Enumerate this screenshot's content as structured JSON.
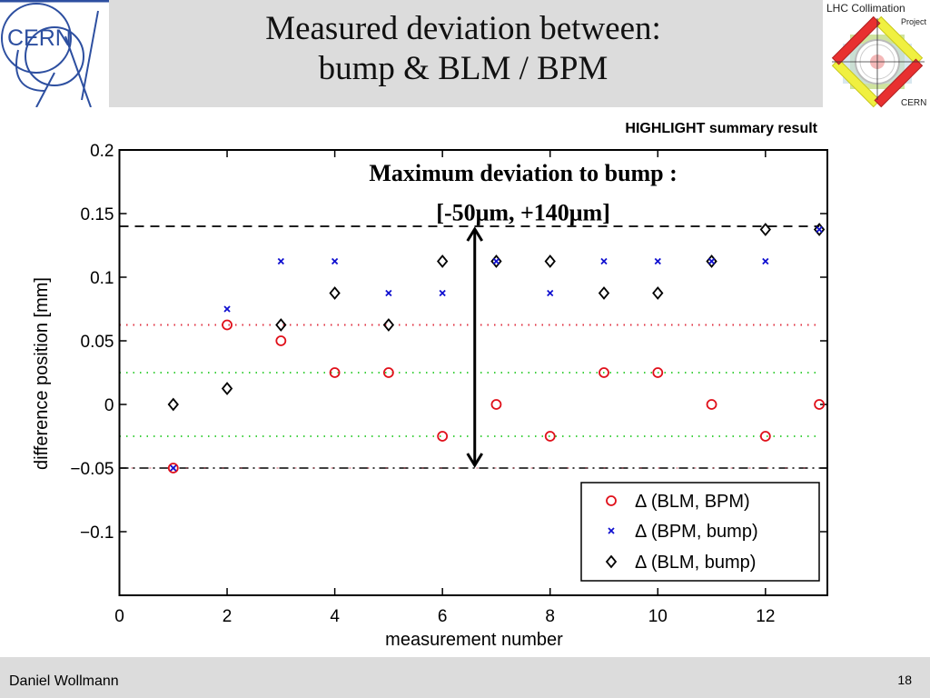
{
  "slide": {
    "title_line1": "Measured deviation between:",
    "title_line2": "bump & BLM / BPM",
    "highlight_label": "HIGHLIGHT summary result",
    "footer_author": "Daniel Wollmann",
    "page_number": "18",
    "logos": {
      "left": "CERN",
      "right_title": "LHC Collimation",
      "right_subtitle": "Project",
      "right_footer": "CERN"
    }
  },
  "colors": {
    "header_band": "#dcdcdc",
    "series_blm_bpm": "#e0101a",
    "series_bpm_bump": "#1010d0",
    "series_blm_bump": "#000000",
    "line_red_dotted": "#e03040",
    "line_green_dotted": "#40d040"
  },
  "chart_data": {
    "type": "scatter",
    "title": "",
    "xlabel": "measurement number",
    "ylabel": "difference position [mm]",
    "xlim": [
      0,
      13.15
    ],
    "ylim": [
      -0.15,
      0.2
    ],
    "xticks": [
      0,
      2,
      4,
      6,
      8,
      10,
      12
    ],
    "xtick_labels": [
      "0",
      "2",
      "4",
      "6",
      "8",
      "10",
      "12"
    ],
    "yticks": [
      0.2,
      0.15,
      0.1,
      0.05,
      0,
      -0.05,
      -0.1
    ],
    "ytick_labels": [
      "0.2",
      "0.15",
      "0.1",
      "0.05",
      "0",
      "−0.05",
      "−0.1"
    ],
    "grid": false,
    "legend_position": "bottom-right",
    "x": [
      1,
      2,
      3,
      4,
      5,
      6,
      7,
      8,
      9,
      10,
      11,
      12,
      13
    ],
    "series": [
      {
        "name": "Δ (BLM, BPM)",
        "marker": "circle",
        "values": [
          -0.05,
          0.0625,
          0.05,
          0.025,
          0.025,
          -0.025,
          0,
          -0.025,
          0.025,
          0.025,
          0,
          -0.025,
          0
        ]
      },
      {
        "name": "Δ (BPM, bump)",
        "marker": "x",
        "values": [
          -0.05,
          0.075,
          0.1125,
          0.1125,
          0.0875,
          0.0875,
          0.1125,
          0.0875,
          0.1125,
          0.1125,
          0.1125,
          0.1125,
          0.1375
        ]
      },
      {
        "name": "Δ (BLM, bump)",
        "marker": "diamond",
        "values": [
          0,
          0.0125,
          0.0625,
          0.0875,
          0.0625,
          0.1125,
          0.1125,
          0.1125,
          0.0875,
          0.0875,
          0.1125,
          0.1375,
          0.1375
        ]
      }
    ],
    "reference_lines": [
      {
        "name": "max-deviation-upper",
        "y": 0.14,
        "style": "dashed",
        "color": "#000000",
        "x_end": 13
      },
      {
        "name": "red-dotted-line",
        "y": 0.0625,
        "style": "dotted",
        "color": "#e03040",
        "x_end": 13
      },
      {
        "name": "green-dotted-upper",
        "y": 0.025,
        "style": "dotted",
        "color": "#40d040",
        "x_end": 13
      },
      {
        "name": "green-dotted-lower",
        "y": -0.025,
        "style": "dotted",
        "color": "#40d040",
        "x_end": 13
      },
      {
        "name": "max-deviation-lower",
        "y": -0.05,
        "style": "dashdot",
        "color": "#000000",
        "x_end": 13.15
      }
    ],
    "arrow": {
      "x": 6.6,
      "y_from": -0.05,
      "y_to": 0.14,
      "double_headed": true
    },
    "annotation": {
      "line1": "Maximum deviation to bump :",
      "line2": "[-50μm,  +140μm]",
      "x": 7.5,
      "y_line1": 0.182,
      "y_line2": 0.151
    }
  }
}
